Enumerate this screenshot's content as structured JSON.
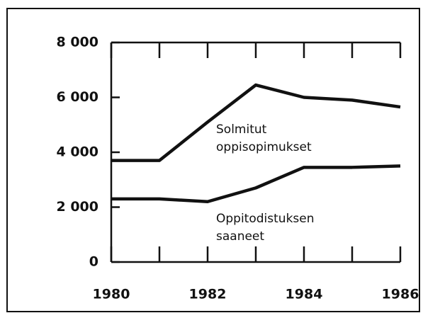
{
  "chart_data": {
    "type": "line",
    "x": [
      1980,
      1981,
      1982,
      1983,
      1984,
      1985,
      1986
    ],
    "xlim": [
      1980,
      1986
    ],
    "xticks": [
      1980,
      1982,
      1984,
      1986
    ],
    "ylim": [
      0,
      8000
    ],
    "yticks": [
      0,
      {
        "value": 2000,
        "label": "2 000"
      },
      {
        "value": 4000,
        "label": "4 000"
      },
      {
        "value": 6000,
        "label": "6 000"
      },
      {
        "value": 8000,
        "label": "8 000"
      }
    ],
    "series": [
      {
        "name": "Solmitut oppisopimukset",
        "color": "#111111",
        "values": [
          3700,
          3700,
          5100,
          6450,
          6000,
          5900,
          5650
        ]
      },
      {
        "name": "Oppitodistuksen saaneet",
        "color": "#111111",
        "values": [
          2300,
          2300,
          2200,
          2700,
          3450,
          3450,
          3500
        ]
      }
    ]
  }
}
